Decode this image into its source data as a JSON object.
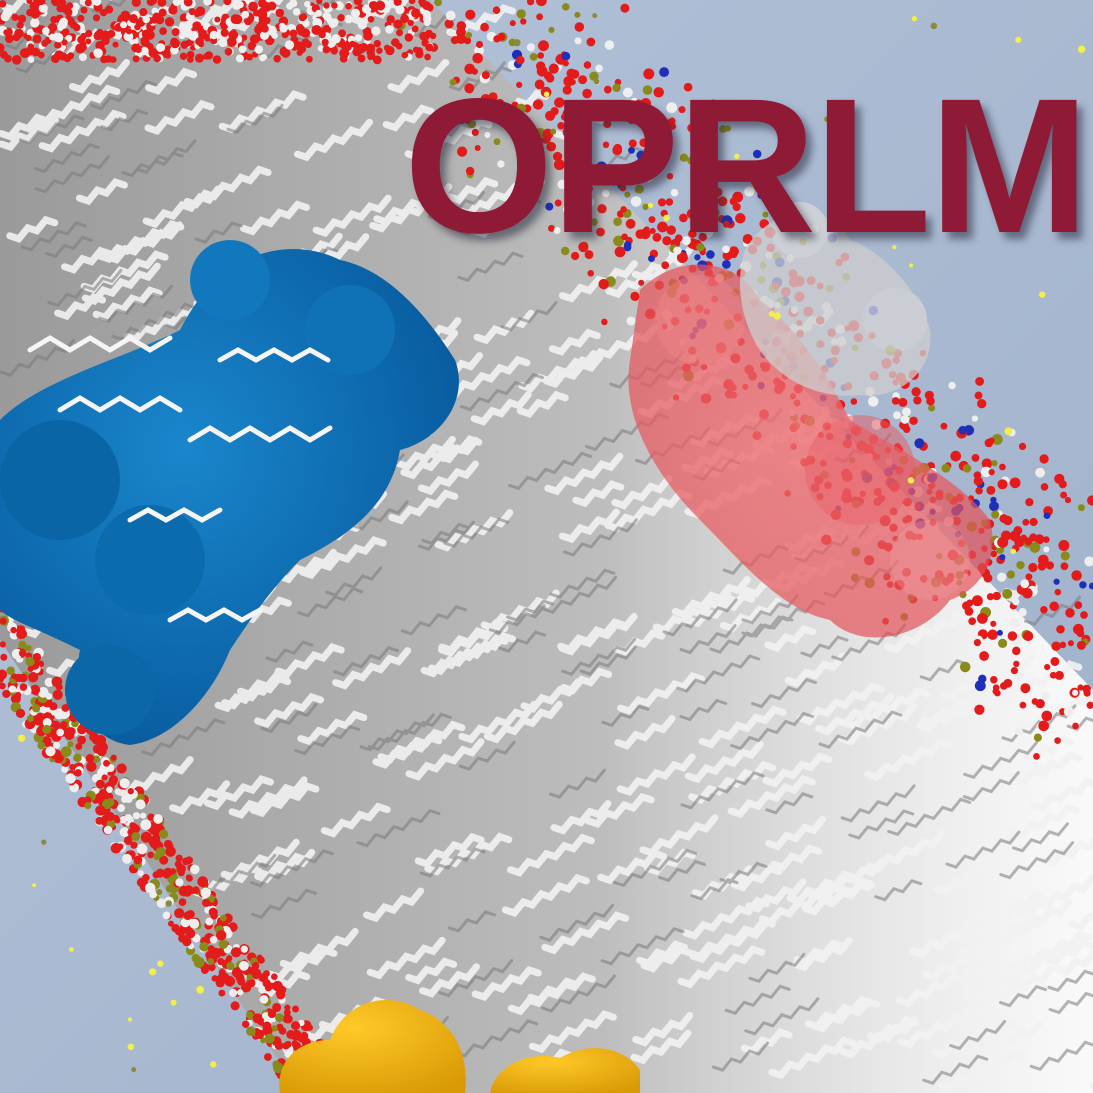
{
  "image": {
    "title": "OPRLM",
    "colors": {
      "background": "#a9b9d0",
      "title": "#8e1a36",
      "protein_left": "#0a6db0",
      "protein_right": "#e85e63",
      "protein_right_faded": "#c9c9c9",
      "protein_bottom": "#f2b60e",
      "lipid_tail": "#eeeeee",
      "headgroup_oxygen": "#e31b1b",
      "headgroup_phosphorus": "#8a8a1a",
      "nitrogen": "#1f2fb8",
      "ion": "#f2ef4a"
    }
  }
}
